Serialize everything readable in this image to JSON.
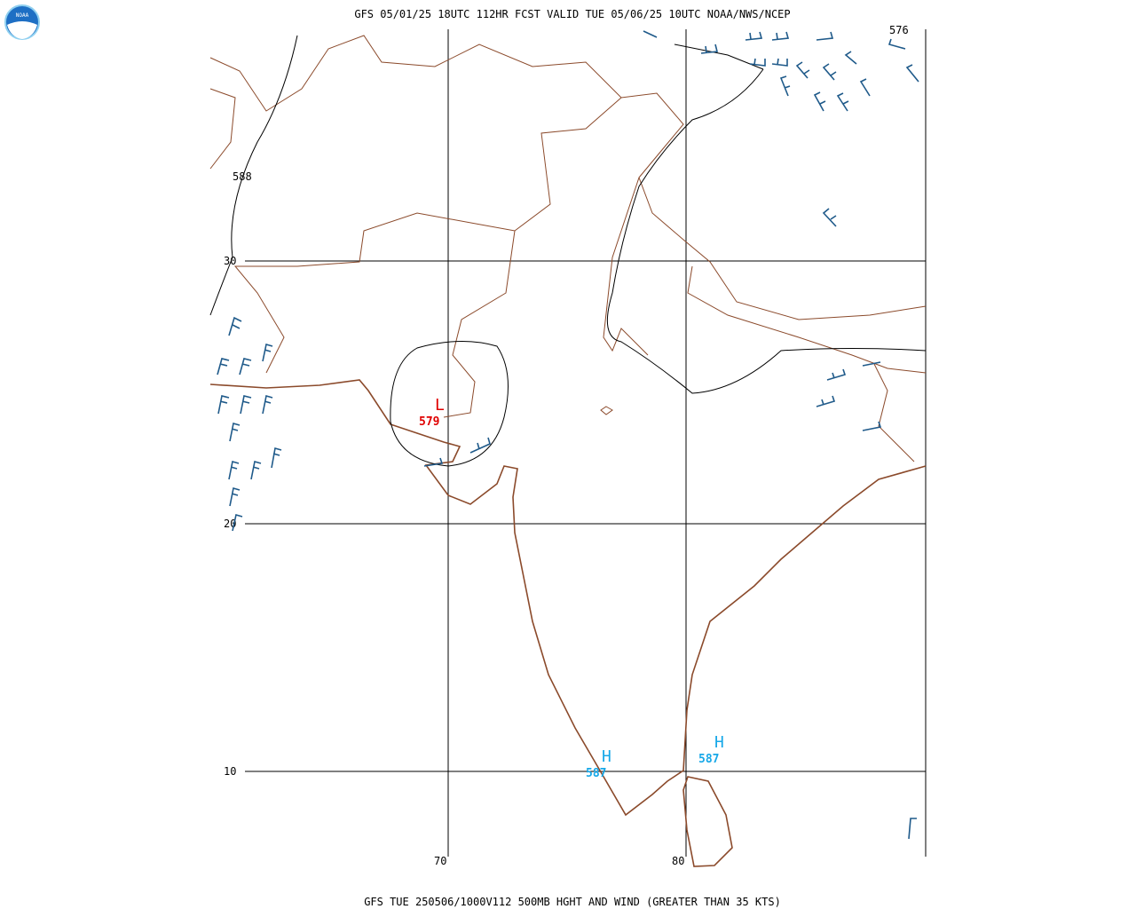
{
  "header": {
    "title": "GFS 05/01/25 18UTC 112HR FCST VALID TUE 05/06/25 10UTC NOAA/NWS/NCEP"
  },
  "footer": "GFS TUE 250506/1000V112 500MB HGHT AND WIND (GREATER THAN 35 KTS)",
  "grid": {
    "lat_labels": [
      "30",
      "20",
      "10"
    ],
    "lon_labels": [
      "70",
      "80"
    ]
  },
  "contour_labels": [
    "588",
    "576"
  ],
  "centers": [
    {
      "symbol": "L",
      "value": "579"
    },
    {
      "symbol": "H",
      "value": "587"
    },
    {
      "symbol": "H",
      "value": "587"
    }
  ],
  "logo": "NOAA"
}
